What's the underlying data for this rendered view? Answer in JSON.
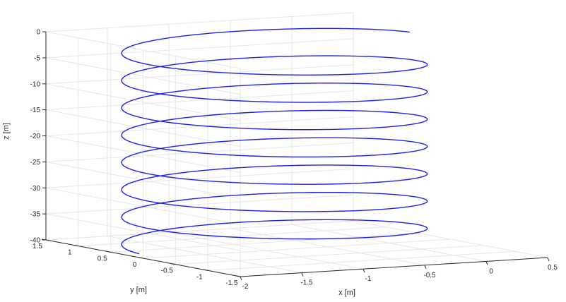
{
  "chart_data": {
    "type": "line3d",
    "title": "",
    "xlabel": "x [m]",
    "ylabel": "y [m]",
    "zlabel": "z [m]",
    "xlim": [
      -2,
      0.5
    ],
    "ylim": [
      -1.5,
      1.5
    ],
    "zlim": [
      -40,
      0
    ],
    "xticks": [
      -2,
      -1.5,
      -1,
      -0.5,
      0,
      0.5
    ],
    "xtick_labels": [
      "-2",
      "-1.5",
      "-1",
      "-0.5",
      "0",
      "0.5"
    ],
    "yticks": [
      -1.5,
      -1,
      -0.5,
      0,
      0.5,
      1,
      1.5
    ],
    "ytick_labels": [
      "-1.5",
      "-1",
      "-0.5",
      "0",
      "0.5",
      "1",
      "1.5"
    ],
    "zticks": [
      0,
      -5,
      -10,
      -15,
      -20,
      -25,
      -30,
      -35,
      -40
    ],
    "ztick_labels": [
      "0",
      "-5",
      "-10",
      "-15",
      "-20",
      "-25",
      "-30",
      "-35",
      "-40"
    ],
    "grid": true,
    "series": [
      {
        "color": "#1f1fe6",
        "parametric": {
          "x": "xc + r*cos(t)",
          "y": "yc + r*sin(t)",
          "z": "z_start + dz_per_turn * t / (2*pi)",
          "xc": -0.8,
          "yc": 0.25,
          "r": 1.1,
          "z_start": -0.5,
          "dz_per_turn": -5.25,
          "turns": 7.5,
          "t_start": 0
        }
      }
    ]
  }
}
